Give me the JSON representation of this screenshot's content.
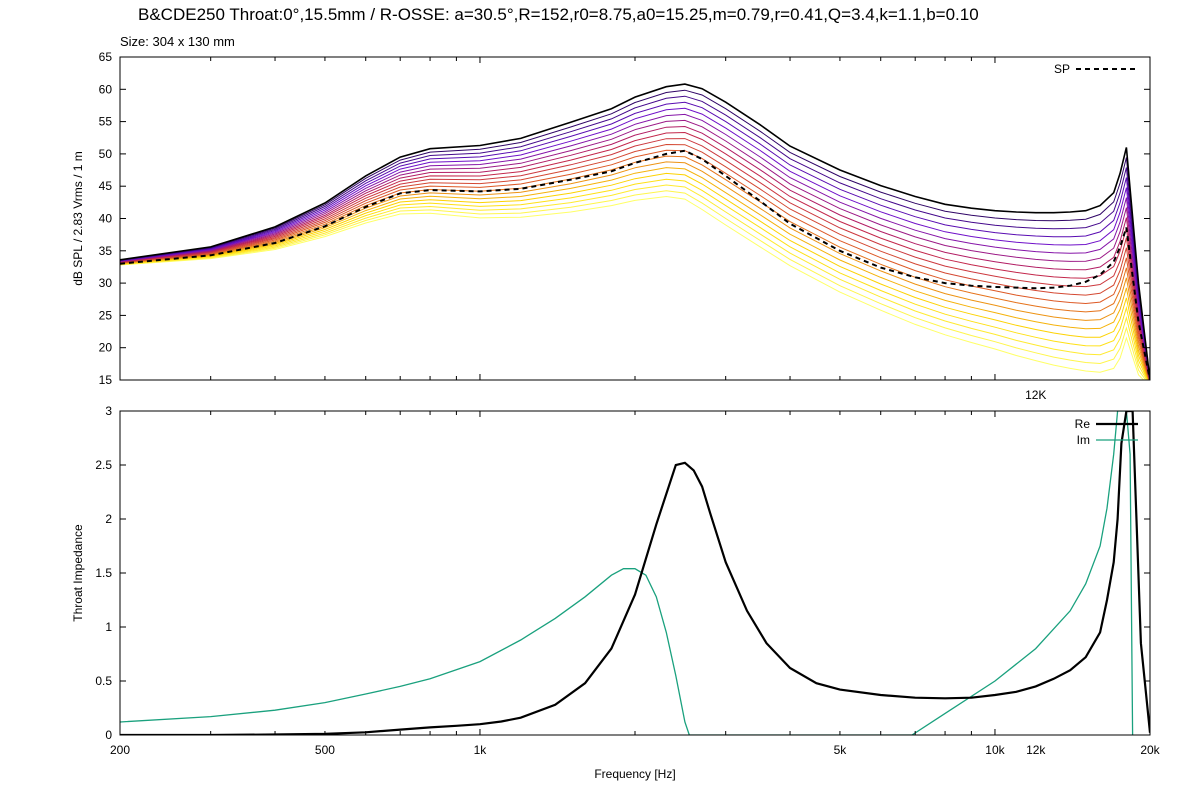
{
  "title": "B&CDE250 Throat:0°,15.5mm / R-OSSE: a=30.5°,R=152,r0=8.75,a0=15.25,m=0.79,r=0.41,Q=3.4,k=1.1,b=0.10",
  "subtitle": "Size: 304 x 130 mm",
  "chart_data": [
    {
      "type": "line",
      "ylabel": "dB SPL / 2.83 Vrms / 1 m",
      "xscale": "log",
      "xlim": [
        200,
        20000
      ],
      "ylim": [
        15,
        65
      ],
      "yticks": [
        15,
        20,
        25,
        30,
        35,
        40,
        45,
        50,
        55,
        60,
        65
      ],
      "xticks": [
        {
          "value": 12000,
          "label": "12K"
        }
      ],
      "grid": false,
      "legend_position": "top-right",
      "family_count": 20,
      "family_colors": [
        "#1a0040",
        "#6a0fd0",
        "#c02050",
        "#e06020",
        "#ffd800",
        "#ffff66"
      ],
      "family_top_color": "#000000",
      "family_base_curve": {
        "x": [
          200,
          300,
          400,
          500,
          600,
          700,
          800,
          1000,
          1200,
          1500,
          1800,
          2000,
          2300,
          2500,
          2700,
          3000,
          3500,
          4000,
          5000,
          6000,
          7000,
          8000,
          9000,
          10000,
          11000,
          12000,
          13000,
          14000,
          15000,
          16000,
          17000,
          17500,
          18000,
          19000,
          20000
        ],
        "y": [
          32.8,
          33.8,
          35.2,
          37.2,
          39.3,
          40.7,
          40.8,
          40.1,
          40.2,
          41.0,
          42.0,
          42.8,
          43.4,
          43.0,
          41.4,
          39.0,
          35.6,
          32.7,
          28.6,
          25.8,
          23.6,
          22.0,
          20.8,
          19.8,
          18.8,
          18.0,
          17.3,
          16.8,
          16.4,
          16.2,
          16.8,
          18.4,
          21.5,
          15.8,
          14.0
        ]
      },
      "family_top_curve": {
        "x": [
          200,
          300,
          400,
          500,
          600,
          700,
          800,
          1000,
          1200,
          1500,
          1800,
          2000,
          2300,
          2500,
          2700,
          3000,
          3500,
          4000,
          5000,
          6000,
          7000,
          8000,
          9000,
          10000,
          11000,
          12000,
          13000,
          14000,
          15000,
          16000,
          17000,
          17500,
          18000,
          19000,
          20000
        ],
        "y": [
          33.6,
          35.6,
          38.7,
          42.4,
          46.6,
          49.5,
          50.8,
          51.3,
          52.4,
          54.9,
          57.0,
          58.8,
          60.4,
          60.8,
          60.1,
          58.0,
          54.5,
          51.2,
          47.5,
          45.1,
          43.4,
          42.2,
          41.6,
          41.2,
          41.0,
          40.9,
          40.9,
          41.0,
          41.2,
          42.0,
          44.0,
          47.0,
          51.0,
          30.0,
          15.0
        ]
      },
      "series": [
        {
          "name": "SP",
          "color": "#000000",
          "style": "dashed",
          "x": [
            200,
            300,
            400,
            500,
            600,
            700,
            800,
            1000,
            1200,
            1500,
            1800,
            2000,
            2300,
            2500,
            2700,
            3000,
            3500,
            4000,
            5000,
            6000,
            7000,
            8000,
            9000,
            10000,
            11000,
            12000,
            13000,
            14000,
            15000,
            16000,
            17000,
            17500,
            18000,
            19000,
            20000
          ],
          "y": [
            33.0,
            34.3,
            36.2,
            38.8,
            41.8,
            43.9,
            44.4,
            44.2,
            44.6,
            46.0,
            47.3,
            48.6,
            50.0,
            50.5,
            49.2,
            46.6,
            42.7,
            39.2,
            35.0,
            32.4,
            30.9,
            30.0,
            29.6,
            29.4,
            29.3,
            29.2,
            29.3,
            29.6,
            30.2,
            31.3,
            33.3,
            35.6,
            38.6,
            24.0,
            15.0
          ]
        }
      ]
    },
    {
      "type": "line",
      "xlabel": "Frequency [Hz]",
      "ylabel": "Throat Impedance",
      "xscale": "log",
      "xlim": [
        200,
        20000
      ],
      "ylim": [
        0,
        3
      ],
      "yticks": [
        0,
        0.5,
        1,
        1.5,
        2,
        2.5,
        3
      ],
      "xticks": [
        {
          "value": 200,
          "label": "200"
        },
        {
          "value": 500,
          "label": "500"
        },
        {
          "value": 1000,
          "label": "1k"
        },
        {
          "value": 5000,
          "label": "5k"
        },
        {
          "value": 10000,
          "label": "10k"
        },
        {
          "value": 12000,
          "label": "12k"
        },
        {
          "value": 20000,
          "label": "20k"
        }
      ],
      "grid": false,
      "legend_position": "top-right",
      "series": [
        {
          "name": "Re",
          "color": "#000000",
          "style": "solid",
          "x": [
            200,
            300,
            400,
            500,
            600,
            700,
            800,
            900,
            1000,
            1100,
            1200,
            1400,
            1600,
            1800,
            2000,
            2200,
            2400,
            2500,
            2600,
            2700,
            2800,
            3000,
            3300,
            3600,
            4000,
            4500,
            5000,
            6000,
            7000,
            8000,
            9000,
            10000,
            11000,
            12000,
            13000,
            14000,
            15000,
            16000,
            16500,
            17000,
            17300,
            17600,
            18000,
            18500,
            19200,
            20000
          ],
          "y": [
            0.0,
            0.0,
            0.005,
            0.01,
            0.025,
            0.05,
            0.07,
            0.085,
            0.1,
            0.125,
            0.16,
            0.28,
            0.48,
            0.8,
            1.3,
            1.95,
            2.5,
            2.52,
            2.45,
            2.3,
            2.05,
            1.6,
            1.15,
            0.85,
            0.62,
            0.48,
            0.42,
            0.37,
            0.345,
            0.34,
            0.345,
            0.37,
            0.4,
            0.45,
            0.52,
            0.6,
            0.72,
            0.95,
            1.25,
            1.6,
            2.0,
            2.7,
            3.0,
            3.0,
            0.85,
            0.02
          ]
        },
        {
          "name": "Im",
          "color": "#1aa17e",
          "style": "solid",
          "x": [
            200,
            300,
            400,
            500,
            600,
            700,
            800,
            1000,
            1200,
            1400,
            1600,
            1800,
            1900,
            2000,
            2100,
            2200,
            2300,
            2400,
            2500,
            2550,
            6900,
            8000,
            10000,
            12000,
            14000,
            15000,
            16000,
            16500,
            17000,
            17300,
            17600,
            18000,
            18300,
            18500
          ],
          "y": [
            0.12,
            0.17,
            0.23,
            0.3,
            0.38,
            0.45,
            0.52,
            0.68,
            0.88,
            1.08,
            1.28,
            1.48,
            1.54,
            1.54,
            1.48,
            1.28,
            0.95,
            0.55,
            0.12,
            0.0,
            0.0,
            0.2,
            0.5,
            0.8,
            1.15,
            1.4,
            1.75,
            2.1,
            2.6,
            3.0,
            3.0,
            3.0,
            2.6,
            0.0
          ]
        }
      ]
    }
  ]
}
